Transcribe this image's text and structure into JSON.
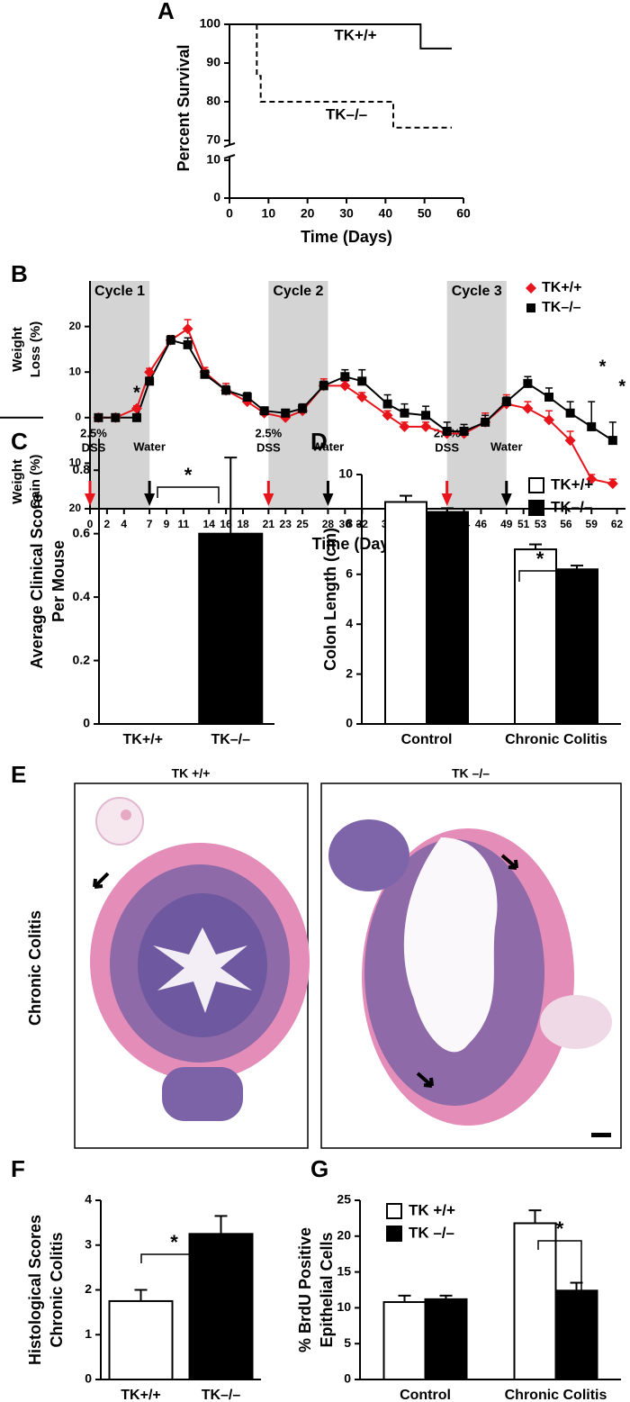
{
  "chart_data": [
    {
      "type": "step",
      "label": "A",
      "xlabel": "Time (Days)",
      "ylabel": "Percent Survival",
      "xlim": [
        0,
        60
      ],
      "xticks": [
        0,
        10,
        20,
        30,
        40,
        50,
        60
      ],
      "ylim": [
        0,
        100
      ],
      "axis_break": [
        10,
        70
      ],
      "yticks": [
        0,
        10,
        70,
        80,
        90,
        100
      ],
      "series": [
        {
          "name": "TK+/+",
          "color": "#000000",
          "linestyle": "solid",
          "x": [
            0,
            49,
            49,
            57
          ],
          "values": [
            100,
            100,
            93.75,
            93.75
          ]
        },
        {
          "name": "TK–/–",
          "color": "#000000",
          "linestyle": "dashed",
          "x": [
            7,
            7,
            8,
            8,
            42,
            42,
            57
          ],
          "values": [
            100,
            86.7,
            86.7,
            80,
            80,
            73.3,
            73.3
          ]
        }
      ]
    },
    {
      "type": "line",
      "label": "B",
      "xlabel": "Time (Days)",
      "ylabel_top": [
        "Weight",
        "Loss (%)"
      ],
      "ylabel_bottom": [
        "Weight",
        "Gain (%)"
      ],
      "xlim": [
        0,
        63
      ],
      "xticks": [
        0,
        2,
        4,
        7,
        9,
        11,
        14,
        16,
        18,
        21,
        23,
        25,
        28,
        30,
        32,
        35,
        37,
        39,
        42,
        44,
        46,
        49,
        51,
        53,
        56,
        59,
        62
      ],
      "ylim": [
        -20,
        30
      ],
      "yticks": [
        20,
        10,
        0,
        {
          "value": -10,
          "label": "10"
        },
        {
          "value": -20,
          "label": "20"
        }
      ],
      "cycles": [
        {
          "label": "Cycle 1",
          "start": 0,
          "end": 7
        },
        {
          "label": "Cycle 2",
          "start": 21,
          "end": 28
        },
        {
          "label": "Cycle 3",
          "start": 42,
          "end": 49
        }
      ],
      "treatments": [
        {
          "label": [
            "2.5%",
            "DSS"
          ],
          "x": 0,
          "color": "#e8141b"
        },
        {
          "label": "Water",
          "x": 7,
          "color": "#000000"
        },
        {
          "label": [
            "2.5%",
            "DSS"
          ],
          "x": 21,
          "color": "#e8141b"
        },
        {
          "label": "Water",
          "x": 28,
          "color": "#000000"
        },
        {
          "label": [
            "2.5%",
            "DSS"
          ],
          "x": 42,
          "color": "#e8141b"
        },
        {
          "label": "Water",
          "x": 49,
          "color": "#000000"
        }
      ],
      "annotations": [
        "*",
        "*",
        "*"
      ],
      "legend": "upper right",
      "x": [
        1,
        3,
        5.5,
        7,
        9.5,
        11.5,
        13.5,
        16,
        18.5,
        20.5,
        23,
        25,
        27.5,
        30,
        32,
        35,
        37,
        39.5,
        42,
        44,
        46.5,
        49,
        51.5,
        54,
        56.5,
        59,
        61.5
      ],
      "series": [
        {
          "name": "TK+/+",
          "color": "#e8141b",
          "marker": "diamond",
          "values": [
            0,
            0,
            2,
            10,
            17,
            19.5,
            10,
            6,
            3.5,
            1,
            0,
            1.5,
            7,
            7,
            4.5,
            0.5,
            -2,
            -2,
            -3.5,
            -3.5,
            -1,
            3,
            2,
            -0.5,
            -5,
            -13.5,
            -14.5
          ],
          "errors": [
            0.3,
            0.5,
            0.6,
            0.8,
            1,
            2,
            1,
            1.5,
            0.8,
            0.5,
            0.5,
            0.8,
            1.5,
            1,
            1,
            1,
            1,
            1,
            1,
            1,
            2,
            2,
            1.5,
            2,
            2,
            1,
            1
          ]
        },
        {
          "name": "TK–/–",
          "color": "#000000",
          "marker": "square",
          "values": [
            0,
            0,
            0,
            8,
            17,
            16,
            9.5,
            6,
            4.5,
            1.5,
            1,
            2,
            7,
            9,
            8,
            3,
            1,
            0.5,
            -3,
            -3,
            -1,
            3.5,
            7.5,
            4.5,
            1,
            -2,
            -5
          ],
          "errors": [
            0.3,
            0.5,
            0.5,
            0.8,
            1,
            1.5,
            1,
            1,
            1,
            0.8,
            0.8,
            1,
            1,
            1.5,
            2.5,
            2,
            2,
            2,
            2,
            1.5,
            1.5,
            1,
            1.5,
            2,
            2.5,
            5.5,
            4
          ]
        }
      ]
    },
    {
      "type": "bar",
      "label": "C",
      "ylabel": [
        "Average Clinical Score",
        "Per Mouse"
      ],
      "categories": [
        "TK+/+",
        "TK–/–"
      ],
      "values": [
        0,
        0.6
      ],
      "errors": [
        0,
        0.24
      ],
      "colors": [
        "#ffffff",
        "#000000"
      ],
      "ylim": [
        0,
        0.9
      ],
      "yticks": [
        0,
        0.2,
        0.4,
        0.6,
        0.8
      ],
      "annotation": "*"
    },
    {
      "type": "bar",
      "label": "D",
      "ylabel": [
        "Colon Length (cm)"
      ],
      "categories": [
        "Control",
        "Chronic Colitis"
      ],
      "legend": "upper right",
      "series": [
        {
          "name": "TK+/+",
          "color": "#ffffff",
          "values": [
            8.9,
            7.0
          ],
          "errors": [
            0.25,
            0.2
          ]
        },
        {
          "name": "TK–/–",
          "color": "#000000",
          "values": [
            8.5,
            6.2
          ],
          "errors": [
            0.15,
            0.15
          ]
        }
      ],
      "ylim": [
        0,
        10
      ],
      "yticks": [
        0,
        2,
        4,
        6,
        8,
        10
      ],
      "annotation": "*"
    },
    {
      "type": "image",
      "label": "E",
      "titles": [
        "TK +/+",
        "TK –/–"
      ],
      "row_label": "Chronic Colitis"
    },
    {
      "type": "bar",
      "label": "F",
      "ylabel": [
        "Histological Scores",
        "Chronic Colitis"
      ],
      "categories": [
        "TK+/+",
        "TK–/–"
      ],
      "values": [
        1.75,
        3.25
      ],
      "errors": [
        0.25,
        0.4
      ],
      "colors": [
        "#ffffff",
        "#000000"
      ],
      "ylim": [
        0,
        4
      ],
      "yticks": [
        0,
        1,
        2,
        3,
        4
      ],
      "annotation": "*"
    },
    {
      "type": "bar",
      "label": "G",
      "ylabel": [
        "% BrdU Positive",
        "Epithelial Cells"
      ],
      "categories": [
        "Control",
        "Chronic Colitis"
      ],
      "legend": "upper left",
      "series": [
        {
          "name": "TK +/+",
          "color": "#ffffff",
          "values": [
            10.8,
            21.8
          ],
          "errors": [
            0.9,
            1.8
          ]
        },
        {
          "name": "TK –/–",
          "color": "#000000",
          "values": [
            11.2,
            12.4
          ],
          "errors": [
            0.5,
            1.1
          ]
        }
      ],
      "ylim": [
        0,
        25
      ],
      "yticks": [
        0,
        5,
        10,
        15,
        20,
        25
      ],
      "annotation": "*"
    }
  ]
}
